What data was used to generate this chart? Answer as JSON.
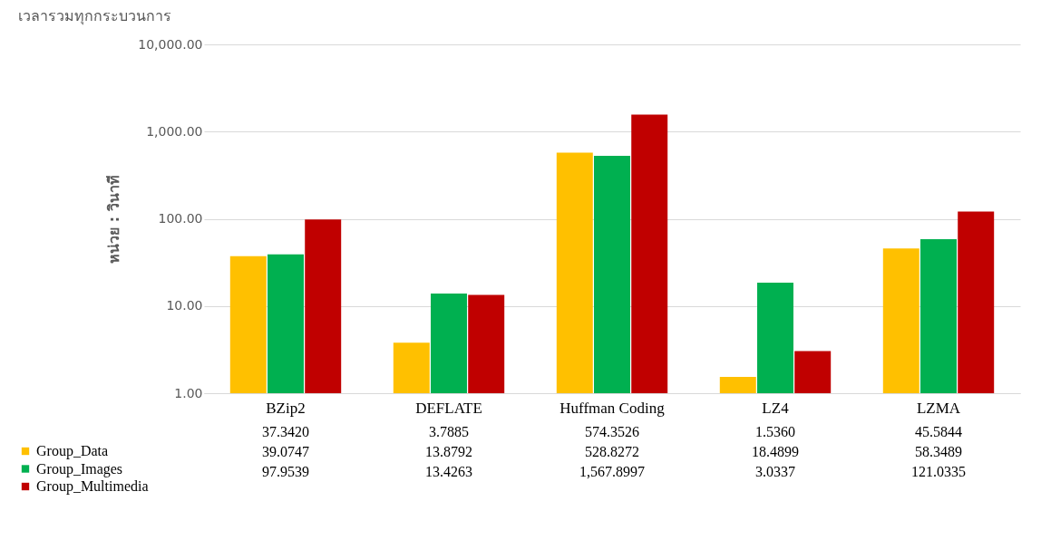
{
  "chart_data": {
    "type": "bar",
    "title": "เวลารวมทุกกระบวนการ",
    "ylabel": "หน่วย : วินาที",
    "categories": [
      "BZip2",
      "DEFLATE",
      "Huffman Coding",
      "LZ4",
      "LZMA"
    ],
    "series": [
      {
        "name": "Group_Data",
        "color": "#ffc000",
        "values": [
          37.342,
          3.7885,
          574.3526,
          1.536,
          45.5844
        ],
        "value_labels": [
          "37.3420",
          "3.7885",
          "574.3526",
          "1.5360",
          "45.5844"
        ]
      },
      {
        "name": "Group_Images",
        "color": "#00b050",
        "values": [
          39.0747,
          13.8792,
          528.8272,
          18.4899,
          58.3489
        ],
        "value_labels": [
          "39.0747",
          "13.8792",
          "528.8272",
          "18.4899",
          "58.3489"
        ]
      },
      {
        "name": "Group_Multimedia",
        "color": "#c00000",
        "values": [
          97.9539,
          13.4263,
          1567.8997,
          3.0337,
          121.0335
        ],
        "value_labels": [
          "97.9539",
          "13.4263",
          "1,567.8997",
          "3.0337",
          "121.0335"
        ]
      }
    ],
    "log": "y",
    "ylim": [
      1,
      10000
    ],
    "yticks": [
      {
        "value": 1,
        "label": "1.00"
      },
      {
        "value": 10,
        "label": "10.00"
      },
      {
        "value": 100,
        "label": "100.00"
      },
      {
        "value": 1000,
        "label": "1,000.00"
      },
      {
        "value": 10000,
        "label": "10,000.00"
      }
    ],
    "grid": "y",
    "legend": "bottom"
  }
}
